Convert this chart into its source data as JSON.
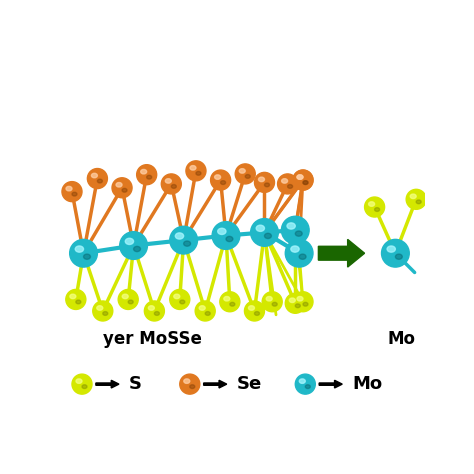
{
  "background_color": "#ffffff",
  "s_color": "#d4e800",
  "se_color": "#e07820",
  "mo_color": "#20b8c8",
  "arrow_color": "#1a6600",
  "text_color": "#000000",
  "legend": [
    {
      "symbol": "S",
      "color": "#d4e800"
    },
    {
      "symbol": "Se",
      "color": "#e07820"
    },
    {
      "symbol": "Mo",
      "color": "#20b8c8"
    }
  ],
  "left_label": "yer MoSSe",
  "right_label": "Mo"
}
